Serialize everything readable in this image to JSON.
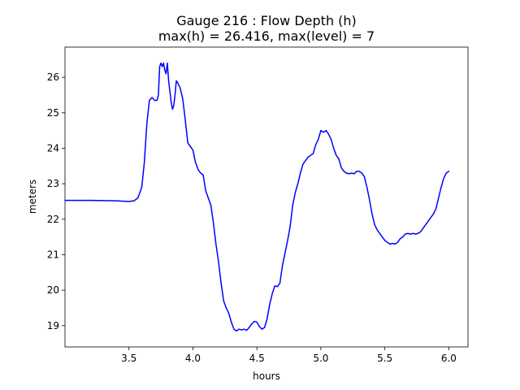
{
  "chart_data": {
    "type": "line",
    "title": "Gauge 216 : Flow Depth (h)",
    "subtitle": "max(h) =  26.416,    max(level) = 7",
    "xlabel": "hours",
    "ylabel": "meters",
    "xlim": [
      3.0,
      6.15
    ],
    "ylim": [
      18.4,
      26.85
    ],
    "xticks": [
      3.5,
      4.0,
      4.5,
      5.0,
      5.5,
      6.0
    ],
    "xtick_labels": [
      "3.5",
      "4.0",
      "4.5",
      "5.0",
      "5.5",
      "6.0"
    ],
    "yticks": [
      19,
      20,
      21,
      22,
      23,
      24,
      25,
      26
    ],
    "ytick_labels": [
      "19",
      "20",
      "21",
      "22",
      "23",
      "24",
      "25",
      "26"
    ],
    "grid": false,
    "colors": {
      "series": "#0000ff"
    },
    "series": [
      {
        "x": [
          3.0,
          3.2,
          3.4,
          3.5,
          3.54,
          3.57,
          3.6,
          3.62,
          3.64,
          3.66,
          3.68,
          3.7,
          3.72,
          3.73,
          3.74,
          3.75,
          3.76,
          3.77,
          3.78,
          3.79,
          3.8,
          3.81,
          3.82,
          3.83,
          3.84,
          3.85,
          3.86,
          3.87,
          3.88,
          3.9,
          3.92,
          3.94,
          3.96,
          3.98,
          4.0,
          4.02,
          4.04,
          4.06,
          4.08,
          4.1,
          4.12,
          4.14,
          4.16,
          4.18,
          4.2,
          4.22,
          4.24,
          4.26,
          4.28,
          4.3,
          4.32,
          4.34,
          4.36,
          4.38,
          4.4,
          4.42,
          4.44,
          4.46,
          4.48,
          4.5,
          4.52,
          4.54,
          4.56,
          4.58,
          4.6,
          4.62,
          4.64,
          4.66,
          4.68,
          4.7,
          4.72,
          4.74,
          4.76,
          4.78,
          4.8,
          4.82,
          4.84,
          4.86,
          4.88,
          4.9,
          4.92,
          4.94,
          4.96,
          4.98,
          5.0,
          5.02,
          5.04,
          5.06,
          5.08,
          5.1,
          5.12,
          5.14,
          5.16,
          5.18,
          5.2,
          5.22,
          5.24,
          5.26,
          5.28,
          5.3,
          5.32,
          5.34,
          5.36,
          5.38,
          5.4,
          5.42,
          5.44,
          5.46,
          5.48,
          5.5,
          5.52,
          5.54,
          5.56,
          5.58,
          5.6,
          5.62,
          5.64,
          5.66,
          5.68,
          5.7,
          5.72,
          5.74,
          5.76,
          5.78,
          5.8,
          5.82,
          5.84,
          5.86,
          5.88,
          5.9,
          5.92,
          5.94,
          5.96,
          5.98,
          6.0
        ],
        "values": [
          22.53,
          22.53,
          22.52,
          22.5,
          22.52,
          22.6,
          22.9,
          23.6,
          24.7,
          25.35,
          25.43,
          25.35,
          25.35,
          25.5,
          26.3,
          26.4,
          26.3,
          26.4,
          26.2,
          26.1,
          26.4,
          25.9,
          25.6,
          25.3,
          25.1,
          25.2,
          25.5,
          25.9,
          25.85,
          25.7,
          25.4,
          24.8,
          24.15,
          24.05,
          23.95,
          23.6,
          23.4,
          23.3,
          23.25,
          22.8,
          22.6,
          22.4,
          21.9,
          21.3,
          20.8,
          20.2,
          19.7,
          19.5,
          19.35,
          19.1,
          18.9,
          18.85,
          18.9,
          18.88,
          18.9,
          18.87,
          18.95,
          19.05,
          19.12,
          19.1,
          18.97,
          18.9,
          18.95,
          19.2,
          19.6,
          19.9,
          20.12,
          20.1,
          20.2,
          20.7,
          21.05,
          21.4,
          21.8,
          22.4,
          22.75,
          23.0,
          23.3,
          23.55,
          23.65,
          23.75,
          23.8,
          23.85,
          24.1,
          24.25,
          24.5,
          24.45,
          24.5,
          24.4,
          24.25,
          24.0,
          23.8,
          23.7,
          23.45,
          23.35,
          23.3,
          23.28,
          23.3,
          23.28,
          23.35,
          23.35,
          23.3,
          23.2,
          22.9,
          22.55,
          22.15,
          21.85,
          21.7,
          21.6,
          21.5,
          21.4,
          21.35,
          21.3,
          21.32,
          21.3,
          21.35,
          21.45,
          21.5,
          21.58,
          21.6,
          21.58,
          21.6,
          21.58,
          21.6,
          21.65,
          21.75,
          21.85,
          21.95,
          22.05,
          22.15,
          22.3,
          22.6,
          22.9,
          23.15,
          23.3,
          23.35
        ]
      }
    ]
  }
}
